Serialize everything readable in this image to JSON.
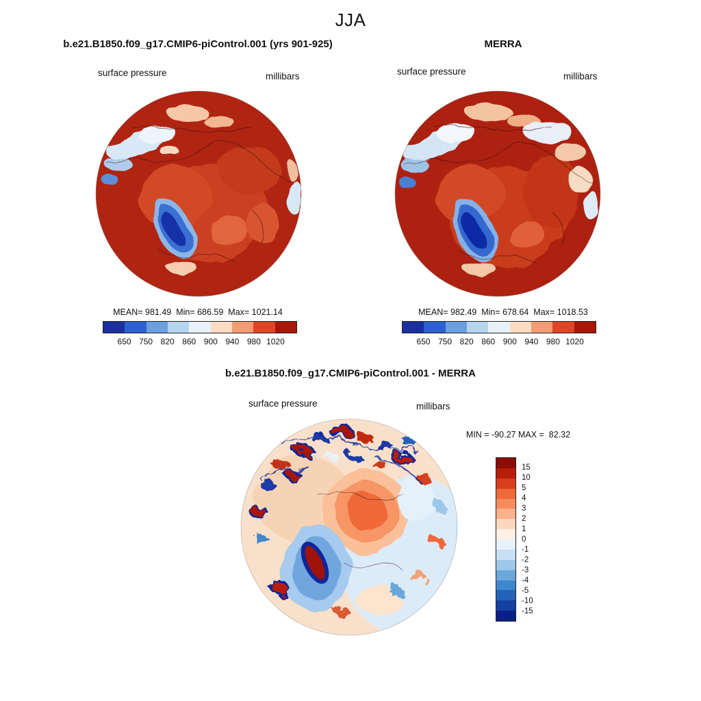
{
  "page_title": "JJA",
  "panels": {
    "model": {
      "title": "b.e21.B1850.f09_g17.CMIP6-piControl.001 (yrs 901-925)",
      "field_label": "surface pressure",
      "units_label": "millibars",
      "stats_text": "MEAN= 981.49  Min= 686.59  Max= 1021.14"
    },
    "obs": {
      "title": "MERRA",
      "field_label": "surface pressure",
      "units_label": "millibars",
      "stats_text": "MEAN= 982.49  Min= 678.64  Max= 1018.53"
    },
    "diff": {
      "title": "b.e21.B1850.f09_g17.CMIP6-piControl.001 - MERRA",
      "field_label": "surface pressure",
      "units_label": "millibars",
      "stats_text": "MIN = -90.27 MAX =  82.32"
    }
  },
  "chart_data": [
    {
      "type": "heatmap",
      "subtype": "north-polar-stereographic-map",
      "season": "JJA",
      "title": "b.e21.B1850.f09_g17.CMIP6-piControl.001 (yrs 901-925)",
      "variable": "surface pressure",
      "units": "millibars",
      "stats": {
        "mean": 981.49,
        "min": 686.59,
        "max": 1021.14
      },
      "colorbar": {
        "orientation": "horizontal",
        "tick_values": [
          650,
          750,
          820,
          860,
          900,
          940,
          980,
          1020
        ],
        "colors": [
          "#1b2f9e",
          "#2b62cf",
          "#6a9fe0",
          "#b6d4ef",
          "#e8f1fa",
          "#fbdcc3",
          "#f59b72",
          "#de4524",
          "#a81605"
        ]
      }
    },
    {
      "type": "heatmap",
      "subtype": "north-polar-stereographic-map",
      "season": "JJA",
      "title": "MERRA",
      "variable": "surface pressure",
      "units": "millibars",
      "stats": {
        "mean": 982.49,
        "min": 678.64,
        "max": 1018.53
      },
      "colorbar": {
        "orientation": "horizontal",
        "tick_values": [
          650,
          750,
          820,
          860,
          900,
          940,
          980,
          1020
        ],
        "colors": [
          "#1b2f9e",
          "#2b62cf",
          "#6a9fe0",
          "#b6d4ef",
          "#e8f1fa",
          "#fbdcc3",
          "#f59b72",
          "#de4524",
          "#a81605"
        ]
      }
    },
    {
      "type": "heatmap",
      "subtype": "north-polar-stereographic-difference-map",
      "season": "JJA",
      "title": "b.e21.B1850.f09_g17.CMIP6-piControl.001 - MERRA",
      "variable": "surface pressure",
      "units": "millibars",
      "stats": {
        "min": -90.27,
        "max": 82.32
      },
      "colorbar": {
        "orientation": "vertical",
        "tick_values": [
          15,
          10,
          5,
          4,
          3,
          2,
          1,
          0,
          -1,
          -2,
          -3,
          -4,
          -5,
          -10,
          -15
        ],
        "colors": [
          "#8c0d04",
          "#b81d09",
          "#d93f1e",
          "#ee6a3c",
          "#f68c5c",
          "#fbb28a",
          "#fdd7bd",
          "#fef0e4",
          "#e8f2fb",
          "#c8e0f5",
          "#9cc8ea",
          "#6aa8dc",
          "#3f87cd",
          "#2262b8",
          "#1440a0",
          "#0a1f86"
        ]
      }
    }
  ]
}
